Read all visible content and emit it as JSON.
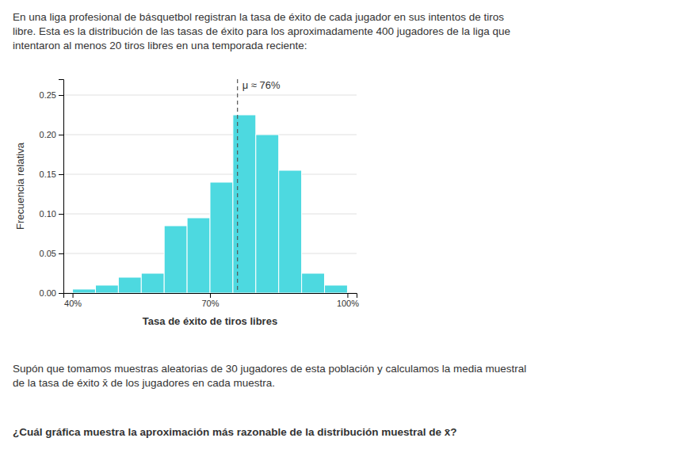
{
  "paragraph1": [
    "En una liga profesional de básquetbol registran la tasa de éxito de cada jugador en sus intentos de tiros",
    "libre. Esta es la distribución de las tasas de éxito para los aproximadamente 400 jugadores de la liga que",
    "intentaron al menos 20 tiros libres en una temporada reciente:"
  ],
  "paragraph2": [
    "Supón que tomamos muestras aleatorias de 30 jugadores de esta población y calculamos la media muestral",
    "de la tasa de éxito x̄ de los jugadores en cada muestra."
  ],
  "question": "¿Cuál gráfica muestra la aproximación más razonable de la distribución muestral de x̄?",
  "chart_data": {
    "type": "histogram",
    "bins": [
      40,
      45,
      50,
      55,
      60,
      65,
      70,
      75,
      80,
      85,
      90,
      95,
      100
    ],
    "values": [
      0.005,
      0.01,
      0.02,
      0.025,
      0.085,
      0.095,
      0.14,
      0.225,
      0.2,
      0.155,
      0.025,
      0.01
    ],
    "color": "#4DD9E0",
    "xlabel": "Tasa de éxito de tiros libres",
    "ylabel": "Frecuencia relativa",
    "xlim": [
      38,
      102
    ],
    "ylim": [
      0,
      0.27
    ],
    "xticks": [
      {
        "value": 40,
        "label": "40%"
      },
      {
        "value": 70,
        "label": "70%"
      },
      {
        "value": 100,
        "label": "100%"
      }
    ],
    "yticks": [
      {
        "value": 0.0,
        "label": "0.00"
      },
      {
        "value": 0.05,
        "label": "0.05"
      },
      {
        "value": 0.1,
        "label": "0.10"
      },
      {
        "value": 0.15,
        "label": "0.15"
      },
      {
        "value": 0.2,
        "label": "0.20"
      },
      {
        "value": 0.25,
        "label": "0.25"
      }
    ],
    "grid": true,
    "annotations": [
      {
        "x": 76,
        "text": "μ ≈ 76%"
      }
    ]
  }
}
